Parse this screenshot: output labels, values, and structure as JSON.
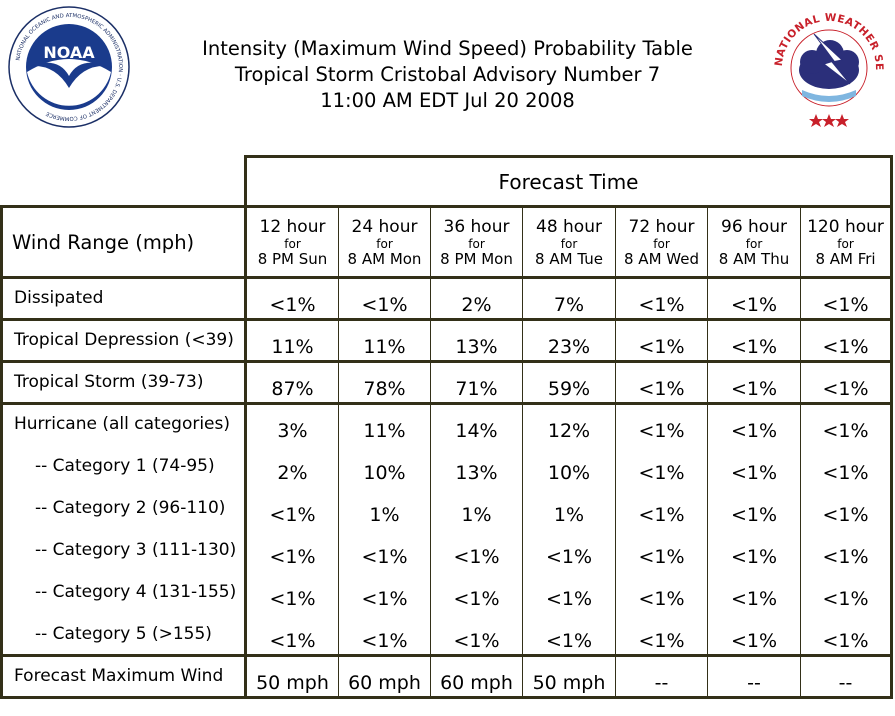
{
  "header": {
    "title_line1": "Intensity (Maximum Wind Speed) Probability Table",
    "title_line2": "Tropical Storm Cristobal Advisory Number 7",
    "title_line3": "11:00 AM EDT Jul 20 2008"
  },
  "logos": {
    "noaa_text": "NOAA",
    "noaa_ring_text": "NATIONAL OCEANIC AND ATMOSPHERIC ADMINISTRATION · U.S. DEPARTMENT OF COMMERCE",
    "nws_ring_text": "NATIONAL WEATHER SERVICE"
  },
  "table": {
    "forecast_time_label": "Forecast Time",
    "wind_range_label": "Wind Range (mph)",
    "columns": [
      {
        "hours": "12 hour",
        "for": "for",
        "when": "8 PM Sun"
      },
      {
        "hours": "24 hour",
        "for": "for",
        "when": "8 AM Mon"
      },
      {
        "hours": "36 hour",
        "for": "for",
        "when": "8 PM Mon"
      },
      {
        "hours": "48 hour",
        "for": "for",
        "when": "8 AM Tue"
      },
      {
        "hours": "72 hour",
        "for": "for",
        "when": "8 AM Wed"
      },
      {
        "hours": "96 hour",
        "for": "for",
        "when": "8 AM Thu"
      },
      {
        "hours": "120 hour",
        "for": "for",
        "when": "8 AM Fri"
      }
    ],
    "rows": [
      {
        "label": "Dissipated",
        "values": [
          "<1%",
          "<1%",
          "2%",
          "7%",
          "<1%",
          "<1%",
          "<1%"
        ]
      },
      {
        "label": "Tropical Depression (<39)",
        "values": [
          "11%",
          "11%",
          "13%",
          "23%",
          "<1%",
          "<1%",
          "<1%"
        ]
      },
      {
        "label": "Tropical Storm (39-73)",
        "values": [
          "87%",
          "78%",
          "71%",
          "59%",
          "<1%",
          "<1%",
          "<1%"
        ]
      },
      {
        "label": "Hurricane (all categories)",
        "values": [
          "3%",
          "11%",
          "14%",
          "12%",
          "<1%",
          "<1%",
          "<1%"
        ]
      },
      {
        "label": "-- Category 1 (74-95)",
        "values": [
          "2%",
          "10%",
          "13%",
          "10%",
          "<1%",
          "<1%",
          "<1%"
        ]
      },
      {
        "label": "-- Category 2 (96-110)",
        "values": [
          "<1%",
          "1%",
          "1%",
          "1%",
          "<1%",
          "<1%",
          "<1%"
        ]
      },
      {
        "label": "-- Category 3 (111-130)",
        "values": [
          "<1%",
          "<1%",
          "<1%",
          "<1%",
          "<1%",
          "<1%",
          "<1%"
        ]
      },
      {
        "label": "-- Category 4 (131-155)",
        "values": [
          "<1%",
          "<1%",
          "<1%",
          "<1%",
          "<1%",
          "<1%",
          "<1%"
        ]
      },
      {
        "label": "-- Category 5 (>155)",
        "values": [
          "<1%",
          "<1%",
          "<1%",
          "<1%",
          "<1%",
          "<1%",
          "<1%"
        ]
      }
    ],
    "max_wind": {
      "label": "Forecast Maximum Wind",
      "values": [
        "50 mph",
        "60 mph",
        "60 mph",
        "50 mph",
        "--",
        "--",
        "--"
      ]
    }
  }
}
